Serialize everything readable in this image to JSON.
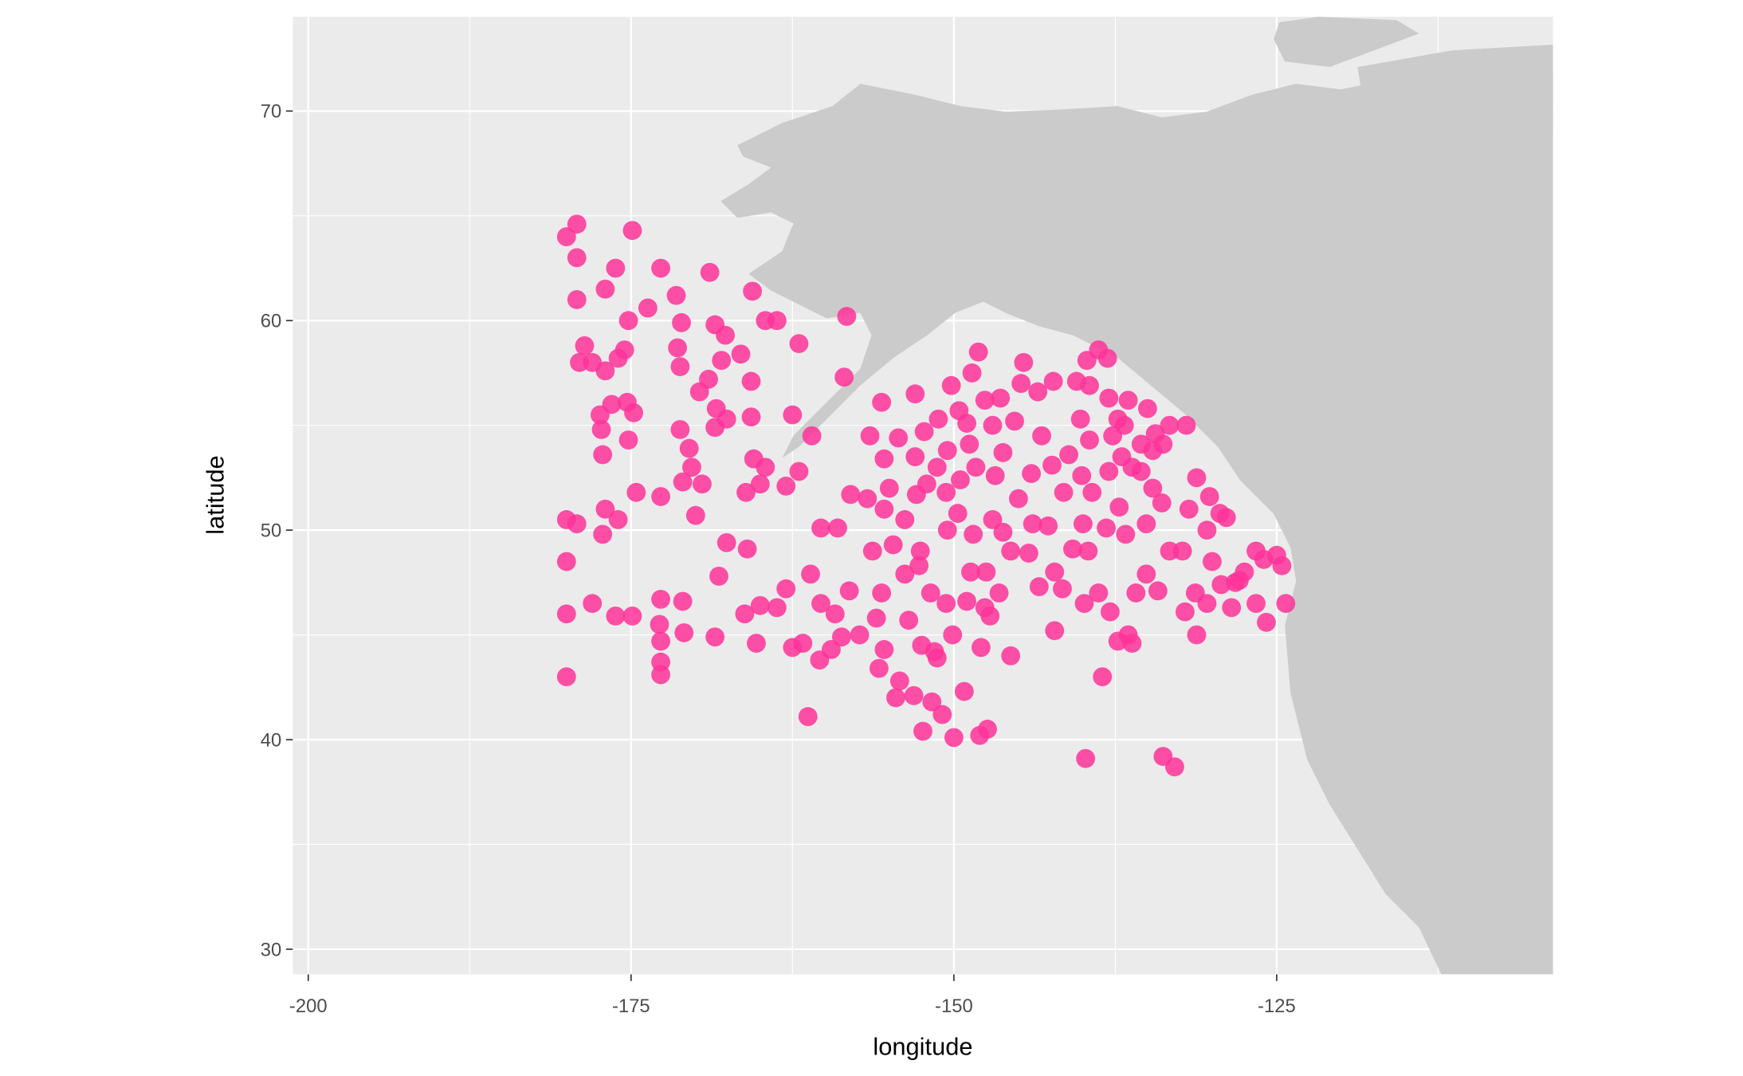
{
  "chart_data": {
    "type": "scatter",
    "x_label": "longitude",
    "y_label": "latitude",
    "color": "#ff3399",
    "xlim": [
      -201.2,
      -103.6
    ],
    "ylim": [
      28.8,
      74.5
    ],
    "xticks": [
      -200,
      -175,
      -150,
      -125
    ],
    "yticks": [
      30,
      40,
      50,
      60,
      70
    ],
    "grid": true,
    "x": [
      -180,
      -179.2,
      -179.2,
      -179.2,
      -178.6,
      -179,
      -178,
      -177,
      -176.2,
      -174.9,
      -173.7,
      -172.7,
      -171.5,
      -171.1,
      -175.2,
      -175.5,
      -176,
      -177,
      -176.5,
      -175.3,
      -174.8,
      -177.4,
      -177.3,
      -177.2,
      -175.2,
      -172.7,
      -174.6,
      -176,
      -177,
      -177.2,
      -180,
      -179.2,
      -180,
      -180,
      -180,
      -178,
      -176.2,
      -174.9,
      -172.7,
      -172.8,
      -172.7,
      -172.7,
      -172.7,
      -171,
      -170.9,
      -170,
      -171,
      -170.5,
      -171.2,
      -170.3,
      -169.5,
      -168.5,
      -167.6,
      -168.4,
      -169.7,
      -169,
      -168,
      -166.5,
      -167.7,
      -168.5,
      -171.4,
      -171.2,
      -168.9,
      -165.6,
      -164.6,
      -163.7,
      -165.7,
      -165.7,
      -165.5,
      -164.6,
      -165,
      -166.1,
      -163,
      -162,
      -167.6,
      -166,
      -166.2,
      -165,
      -165.3,
      -163.7,
      -163,
      -162.5,
      -168.5,
      -168.2,
      -162,
      -162.5,
      -161,
      -161.3,
      -160.4,
      -159.5,
      -158.7,
      -160.3,
      -159.2,
      -161.7,
      -161.1,
      -160.3,
      -159,
      -158.1,
      -158,
      -158.5,
      -158.3,
      -156.5,
      -155.6,
      -154.3,
      -155.4,
      -156.7,
      -155.4,
      -156.3,
      -155.6,
      -156,
      -155.4,
      -155.8,
      -154.5,
      -154.2,
      -153.1,
      -151.7,
      -152.4,
      -150.9,
      -150,
      -148,
      -147.4,
      -149.2,
      -150.1,
      -151.5,
      -150.6,
      -151.8,
      -152.7,
      -153.8,
      -154.7,
      -153.8,
      -152.9,
      -152.1,
      -151.3,
      -152.3,
      -151.2,
      -150.2,
      -149.6,
      -148.6,
      -148.1,
      -147.6,
      -148.8,
      -148.3,
      -149.5,
      -150.6,
      -149.7,
      -148.5,
      -147.5,
      -146.5,
      -147.6,
      -147.9,
      -145.6,
      -147.2,
      -146.2,
      -145.6,
      -145,
      -146.8,
      -146.2,
      -147,
      -145.3,
      -146.4,
      -144.8,
      -143.5,
      -142.3,
      -144.6,
      -143.2,
      -142.4,
      -141.5,
      -144,
      -143.9,
      -142.7,
      -140.8,
      -141.6,
      -143.4,
      -142.2,
      -142.2,
      -144.2,
      -150.5,
      -152.6,
      -155,
      -153,
      -150.5,
      -149,
      -153.5,
      -152.5,
      -151.3,
      -157.3,
      -149,
      -148.7,
      -147,
      -153,
      -139.8,
      -139.9,
      -138.8,
      -138.5,
      -137.9,
      -137.3,
      -136.5,
      -136.2,
      -135.9,
      -135.1,
      -134.2,
      -133.8,
      -132.9,
      -132.3,
      -133.3,
      -132.1,
      -131.2,
      -131.3,
      -130.4,
      -129.3,
      -128.5,
      -127.9,
      -126.6,
      -125.8,
      -124.3,
      -124.6,
      -125,
      -126,
      -126.6,
      -127.5,
      -128.2,
      -130,
      -130.4,
      -130.2,
      -131.2,
      -129.4,
      -128.9,
      -131.8,
      -133.9,
      -134.6,
      -135.1,
      -136.7,
      -137.2,
      -138.2,
      -139.3,
      -138,
      -137,
      -135.5,
      -134.4,
      -133.3,
      -132,
      -135,
      -136.5,
      -138,
      -139.5,
      -140.5,
      -139.7,
      -138.1,
      -138.8,
      -136.8,
      -137.7,
      -139.5,
      -140.2,
      -141.1,
      -140.1,
      -140,
      -139.6,
      -136.2,
      -135.5,
      -134.6,
      -133.8,
      -137.3
    ],
    "values": [
      64,
      64.6,
      63,
      61,
      58.8,
      58,
      58,
      61.5,
      62.5,
      64.3,
      60.6,
      62.5,
      61.2,
      59.9,
      60,
      58.6,
      58.2,
      57.6,
      56,
      56.1,
      55.6,
      55.5,
      54.8,
      53.6,
      54.3,
      51.6,
      51.8,
      50.5,
      51,
      49.8,
      50.5,
      50.3,
      48.5,
      46,
      43,
      46.5,
      45.9,
      45.9,
      46.7,
      45.5,
      44.7,
      43.7,
      43.1,
      46.6,
      45.1,
      50.7,
      52.3,
      53.9,
      54.8,
      53,
      52.2,
      54.9,
      55.3,
      55.8,
      56.6,
      57.2,
      58.1,
      58.4,
      59.3,
      59.8,
      58.7,
      57.8,
      62.3,
      61.4,
      60,
      60,
      57.1,
      55.4,
      53.4,
      53,
      52.2,
      51.8,
      52.1,
      52.8,
      49.4,
      49.1,
      46,
      46.4,
      44.6,
      46.3,
      47.2,
      44.4,
      44.9,
      47.8,
      58.9,
      55.5,
      54.5,
      41.1,
      43.8,
      44.3,
      44.9,
      46.5,
      46,
      44.6,
      47.9,
      50.1,
      50.1,
      47.1,
      51.7,
      57.3,
      60.2,
      54.5,
      56.1,
      54.4,
      53.4,
      51.5,
      51,
      49,
      47,
      45.8,
      44.3,
      43.4,
      42,
      42.8,
      42.1,
      41.8,
      40.4,
      41.2,
      40.1,
      40.2,
      40.5,
      42.3,
      45,
      44.2,
      46.5,
      47,
      48.3,
      47.9,
      49.3,
      50.5,
      51.7,
      52.2,
      53,
      54.7,
      55.3,
      56.9,
      55.7,
      57.5,
      58.5,
      56.2,
      54.1,
      53,
      52.4,
      51.8,
      50.8,
      49.8,
      48,
      47,
      46.3,
      44.4,
      44,
      45.9,
      49.9,
      49,
      51.5,
      52.6,
      53.7,
      55,
      55.2,
      56.3,
      57,
      56.6,
      57.1,
      58,
      54.5,
      53.1,
      51.8,
      52.7,
      50.3,
      50.2,
      49.1,
      47.2,
      47.3,
      48,
      45.2,
      48.9,
      50,
      49,
      52,
      53.5,
      53.8,
      55.1,
      45.7,
      44.5,
      43.9,
      45,
      46.6,
      48,
      50.5,
      56.5,
      39.1,
      46.5,
      47,
      43,
      46.1,
      44.7,
      45,
      44.6,
      47,
      47.9,
      47.1,
      39.2,
      38.7,
      49,
      49,
      46.1,
      45,
      47,
      46.5,
      47.4,
      46.3,
      47.6,
      46.5,
      45.6,
      46.5,
      48.3,
      48.8,
      48.6,
      49,
      48,
      47.5,
      48.5,
      50,
      51.6,
      52.5,
      50.8,
      50.6,
      51,
      51.3,
      52,
      50.3,
      49.8,
      51.1,
      50.1,
      51.8,
      52.8,
      53.5,
      54.1,
      54.6,
      55,
      55,
      55.8,
      56.2,
      56.3,
      56.9,
      57.1,
      58.1,
      58.2,
      58.6,
      55,
      54.5,
      54.3,
      55.3,
      53.6,
      52.6,
      50.3,
      49,
      53,
      52.8,
      53.8,
      54.1,
      55.3
    ]
  }
}
